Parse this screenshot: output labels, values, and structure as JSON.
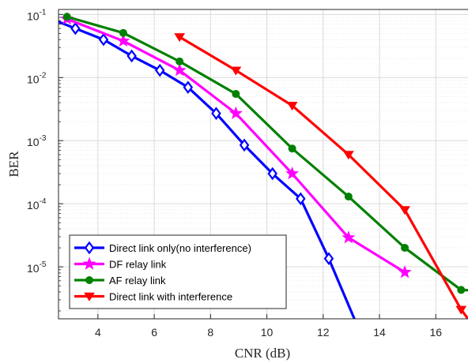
{
  "chart_data": {
    "type": "line",
    "xlabel": "CNR (dB)",
    "ylabel": "BER",
    "xlim": [
      2.6,
      17.2
    ],
    "ylim": [
      1.5e-06,
      0.12
    ],
    "yscale": "log",
    "grid": true,
    "legend_position": "bottom-left",
    "x_ticks": [
      {
        "value": 4,
        "label": "4"
      },
      {
        "value": 6,
        "label": "6"
      },
      {
        "value": 8,
        "label": "8"
      },
      {
        "value": 10,
        "label": "10"
      },
      {
        "value": 12,
        "label": "12"
      },
      {
        "value": 14,
        "label": "14"
      },
      {
        "value": 16,
        "label": "16"
      }
    ],
    "y_ticks": [
      {
        "value": 0.1,
        "base": "10",
        "exp": "-1"
      },
      {
        "value": 0.01,
        "base": "10",
        "exp": "-2"
      },
      {
        "value": 0.001,
        "base": "10",
        "exp": "-3"
      },
      {
        "value": 0.0001,
        "base": "10",
        "exp": "-4"
      },
      {
        "value": 1e-05,
        "base": "10",
        "exp": "-5"
      }
    ],
    "series": [
      {
        "name": "Direct link only(no interference)",
        "color": "#0000ff",
        "marker": "diamond",
        "x": [
          2.2,
          3.2,
          4.2,
          5.2,
          6.2,
          7.2,
          8.2,
          9.2,
          10.2,
          11.2,
          12.2,
          13.2
        ],
        "y": [
          0.09,
          0.06,
          0.04,
          0.022,
          0.013,
          0.007,
          0.0027,
          0.00085,
          0.0003,
          0.00012,
          1.35e-05,
          1.2e-06
        ],
        "marker_x": [
          3.2,
          4.2,
          5.2,
          6.2,
          7.2,
          8.2,
          9.2,
          10.2,
          11.2,
          12.2
        ],
        "marker_y": [
          0.06,
          0.04,
          0.022,
          0.013,
          0.007,
          0.0027,
          0.00085,
          0.0003,
          0.00012,
          1.35e-05
        ]
      },
      {
        "name": "DF relay link",
        "color": "#ff00ff",
        "marker": "star",
        "x": [
          2.9,
          4.9,
          6.9,
          8.9,
          10.9,
          12.9,
          14.9
        ],
        "y": [
          0.085,
          0.038,
          0.013,
          0.0027,
          0.0003,
          2.9e-05,
          8.2e-06
        ],
        "marker_x": [
          2.9,
          4.9,
          6.9,
          8.9,
          10.9,
          12.9,
          14.9
        ],
        "marker_y": [
          0.085,
          0.038,
          0.013,
          0.0027,
          0.0003,
          2.9e-05,
          8.2e-06
        ]
      },
      {
        "name": "AF relay link",
        "color": "#008000",
        "marker": "circle",
        "x": [
          2.9,
          4.9,
          6.9,
          8.9,
          10.9,
          12.9,
          14.9,
          16.9,
          17.5
        ],
        "y": [
          0.092,
          0.051,
          0.018,
          0.0055,
          0.00075,
          0.00013,
          2e-05,
          4.3e-06,
          4.2e-06
        ],
        "marker_x": [
          2.9,
          4.9,
          6.9,
          8.9,
          10.9,
          12.9,
          14.9,
          16.9
        ],
        "marker_y": [
          0.092,
          0.051,
          0.018,
          0.0055,
          0.00075,
          0.00013,
          2e-05,
          4.3e-06
        ]
      },
      {
        "name": "Direct link with interference",
        "color": "#ff0000",
        "marker": "triangle-down",
        "x": [
          6.9,
          8.9,
          10.9,
          12.9,
          14.9,
          16.9,
          17.6
        ],
        "y": [
          0.044,
          0.013,
          0.0036,
          0.0006,
          8e-05,
          2.1e-06,
          8e-07
        ],
        "marker_x": [
          6.9,
          8.9,
          10.9,
          12.9,
          14.9,
          16.9
        ],
        "marker_y": [
          0.044,
          0.013,
          0.0036,
          0.0006,
          8e-05,
          2.1e-06
        ]
      }
    ]
  }
}
